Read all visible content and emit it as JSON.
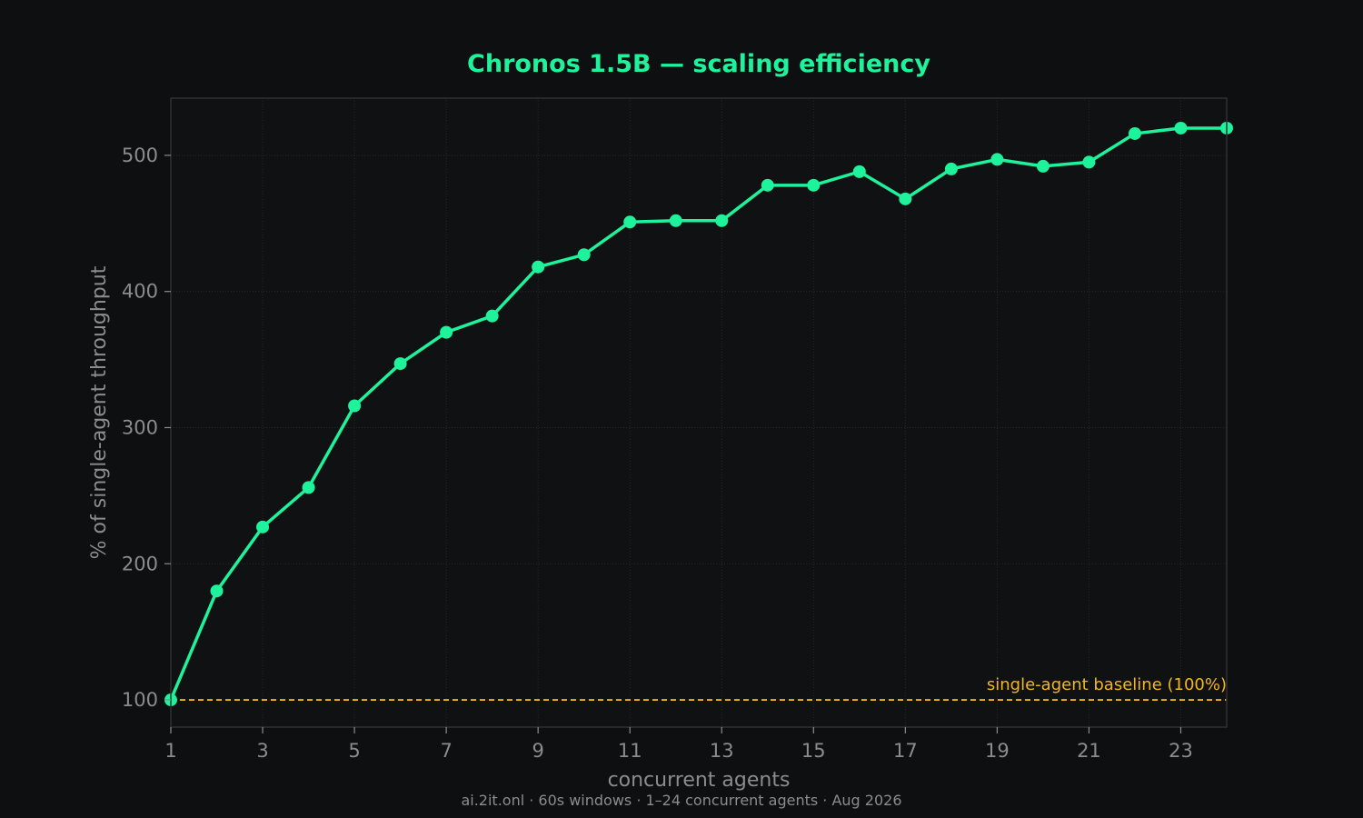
{
  "chart_data": {
    "type": "line",
    "title": "Chronos 1.5B — scaling efficiency",
    "xlabel": "concurrent agents",
    "ylabel": "% of single-agent throughput",
    "footer": "ai.2it.onl · 60s windows · 1–24 concurrent agents · Aug 2026",
    "x": [
      1,
      2,
      3,
      4,
      5,
      6,
      7,
      8,
      9,
      10,
      11,
      12,
      13,
      14,
      15,
      16,
      17,
      18,
      19,
      20,
      21,
      22,
      23,
      24
    ],
    "series": [
      {
        "values": [
          100,
          180,
          227,
          256,
          316,
          347,
          370,
          382,
          418,
          427,
          451,
          452,
          452,
          478,
          478,
          488,
          468,
          490,
          497,
          492,
          495,
          516,
          520,
          520
        ]
      }
    ],
    "x_ticks": [
      1,
      3,
      5,
      7,
      9,
      11,
      13,
      15,
      17,
      19,
      21,
      23
    ],
    "y_ticks": [
      100,
      200,
      300,
      400,
      500
    ],
    "xlim": [
      1,
      24
    ],
    "ylim": [
      80,
      542
    ],
    "grid": true,
    "reference_line": {
      "value": 100,
      "label": "single-agent baseline (100%)"
    },
    "colors": {
      "background": "#0e0f11",
      "plot_background": "#101113",
      "series": "#1ef29a",
      "title": "#1ef29a",
      "baseline": "#f2b61e",
      "grid": "#26282c",
      "frame": "#2f3135",
      "text": "#8a8c90"
    }
  }
}
